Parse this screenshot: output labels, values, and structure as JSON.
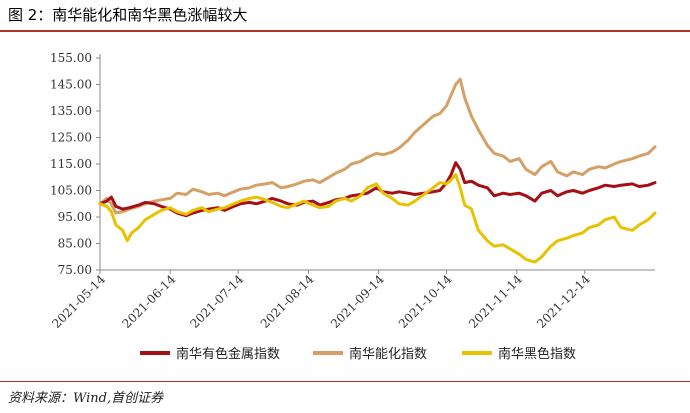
{
  "figure": {
    "title": "图 2：南华能化和南华黑色涨幅较大",
    "source": "资料来源：Wind,首创证券"
  },
  "chart_data": {
    "type": "line",
    "ylim": [
      75,
      155
    ],
    "y_ticks": [
      "75.00",
      "85.00",
      "95.00",
      "105.00",
      "115.00",
      "125.00",
      "135.00",
      "145.00",
      "155.00"
    ],
    "x_range": [
      "2021-05-14",
      "2022-01-14"
    ],
    "x_ticks": [
      "2021-05-14",
      "2021-06-14",
      "2021-07-14",
      "2021-08-14",
      "2021-09-14",
      "2021-10-14",
      "2021-11-14",
      "2021-12-14"
    ],
    "grid": false,
    "legend_position": "bottom",
    "series": [
      {
        "name": "南华有色金属指数",
        "color": "#a50f15",
        "points": [
          [
            "2021-05-14",
            100
          ],
          [
            "2021-05-17",
            101
          ],
          [
            "2021-05-19",
            102.5
          ],
          [
            "2021-05-21",
            99
          ],
          [
            "2021-05-24",
            98
          ],
          [
            "2021-05-27",
            98.5
          ],
          [
            "2021-05-31",
            99.5
          ],
          [
            "2021-06-03",
            100.5
          ],
          [
            "2021-06-07",
            100
          ],
          [
            "2021-06-10",
            99
          ],
          [
            "2021-06-14",
            98
          ],
          [
            "2021-06-17",
            96.5
          ],
          [
            "2021-06-21",
            95.5
          ],
          [
            "2021-06-24",
            96.5
          ],
          [
            "2021-06-28",
            97.5
          ],
          [
            "2021-07-01",
            98
          ],
          [
            "2021-07-05",
            98.5
          ],
          [
            "2021-07-08",
            97.5
          ],
          [
            "2021-07-12",
            99
          ],
          [
            "2021-07-15",
            100
          ],
          [
            "2021-07-19",
            100.5
          ],
          [
            "2021-07-22",
            100
          ],
          [
            "2021-07-26",
            101
          ],
          [
            "2021-07-29",
            102
          ],
          [
            "2021-08-02",
            101
          ],
          [
            "2021-08-05",
            100
          ],
          [
            "2021-08-09",
            99.5
          ],
          [
            "2021-08-12",
            100.5
          ],
          [
            "2021-08-16",
            101
          ],
          [
            "2021-08-19",
            99.5
          ],
          [
            "2021-08-23",
            100.5
          ],
          [
            "2021-08-26",
            101.5
          ],
          [
            "2021-08-30",
            102
          ],
          [
            "2021-09-02",
            103
          ],
          [
            "2021-09-06",
            103.5
          ],
          [
            "2021-09-09",
            104
          ],
          [
            "2021-09-13",
            106
          ],
          [
            "2021-09-16",
            104.5
          ],
          [
            "2021-09-20",
            104
          ],
          [
            "2021-09-23",
            104.5
          ],
          [
            "2021-09-27",
            104
          ],
          [
            "2021-09-30",
            103.5
          ],
          [
            "2021-10-08",
            104.5
          ],
          [
            "2021-10-11",
            105
          ],
          [
            "2021-10-14",
            108
          ],
          [
            "2021-10-16",
            111
          ],
          [
            "2021-10-18",
            115.5
          ],
          [
            "2021-10-20",
            113
          ],
          [
            "2021-10-22",
            108
          ],
          [
            "2021-10-25",
            108.5
          ],
          [
            "2021-10-28",
            107
          ],
          [
            "2021-11-01",
            106
          ],
          [
            "2021-11-04",
            103
          ],
          [
            "2021-11-08",
            104
          ],
          [
            "2021-11-11",
            103.5
          ],
          [
            "2021-11-15",
            104
          ],
          [
            "2021-11-18",
            103
          ],
          [
            "2021-11-22",
            101
          ],
          [
            "2021-11-25",
            104
          ],
          [
            "2021-11-29",
            105
          ],
          [
            "2021-12-02",
            103
          ],
          [
            "2021-12-06",
            104.5
          ],
          [
            "2021-12-09",
            105
          ],
          [
            "2021-12-13",
            104
          ],
          [
            "2021-12-16",
            105
          ],
          [
            "2021-12-20",
            106
          ],
          [
            "2021-12-23",
            107
          ],
          [
            "2021-12-27",
            106.5
          ],
          [
            "2021-12-30",
            107
          ],
          [
            "2022-01-04",
            107.5
          ],
          [
            "2022-01-07",
            106.5
          ],
          [
            "2022-01-11",
            107
          ],
          [
            "2022-01-14",
            108
          ]
        ]
      },
      {
        "name": "南华能化指数",
        "color": "#d4a066",
        "points": [
          [
            "2021-05-14",
            100
          ],
          [
            "2021-05-17",
            102
          ],
          [
            "2021-05-19",
            100
          ],
          [
            "2021-05-21",
            96.5
          ],
          [
            "2021-05-24",
            97
          ],
          [
            "2021-05-27",
            98
          ],
          [
            "2021-05-31",
            99
          ],
          [
            "2021-06-03",
            100
          ],
          [
            "2021-06-07",
            101
          ],
          [
            "2021-06-10",
            101.5
          ],
          [
            "2021-06-14",
            102
          ],
          [
            "2021-06-17",
            104
          ],
          [
            "2021-06-21",
            103.5
          ],
          [
            "2021-06-24",
            105.5
          ],
          [
            "2021-06-28",
            104.5
          ],
          [
            "2021-07-01",
            103.5
          ],
          [
            "2021-07-05",
            104
          ],
          [
            "2021-07-08",
            103
          ],
          [
            "2021-07-12",
            104.5
          ],
          [
            "2021-07-15",
            105.5
          ],
          [
            "2021-07-19",
            106
          ],
          [
            "2021-07-22",
            107
          ],
          [
            "2021-07-26",
            107.5
          ],
          [
            "2021-07-29",
            108
          ],
          [
            "2021-08-02",
            106
          ],
          [
            "2021-08-05",
            106.5
          ],
          [
            "2021-08-09",
            107.5
          ],
          [
            "2021-08-12",
            108.5
          ],
          [
            "2021-08-16",
            109
          ],
          [
            "2021-08-19",
            108
          ],
          [
            "2021-08-23",
            110
          ],
          [
            "2021-08-26",
            111.5
          ],
          [
            "2021-08-30",
            113
          ],
          [
            "2021-09-02",
            115
          ],
          [
            "2021-09-06",
            116
          ],
          [
            "2021-09-09",
            117.5
          ],
          [
            "2021-09-13",
            119
          ],
          [
            "2021-09-16",
            118.5
          ],
          [
            "2021-09-20",
            119.5
          ],
          [
            "2021-09-23",
            121
          ],
          [
            "2021-09-27",
            124
          ],
          [
            "2021-09-30",
            127
          ],
          [
            "2021-10-08",
            133
          ],
          [
            "2021-10-11",
            134
          ],
          [
            "2021-10-14",
            137
          ],
          [
            "2021-10-16",
            141
          ],
          [
            "2021-10-18",
            145
          ],
          [
            "2021-10-20",
            147
          ],
          [
            "2021-10-22",
            140
          ],
          [
            "2021-10-25",
            133
          ],
          [
            "2021-10-28",
            128
          ],
          [
            "2021-11-01",
            122
          ],
          [
            "2021-11-04",
            119
          ],
          [
            "2021-11-08",
            118
          ],
          [
            "2021-11-11",
            116
          ],
          [
            "2021-11-15",
            117
          ],
          [
            "2021-11-18",
            113
          ],
          [
            "2021-11-22",
            111
          ],
          [
            "2021-11-25",
            114
          ],
          [
            "2021-11-29",
            116
          ],
          [
            "2021-12-02",
            112
          ],
          [
            "2021-12-06",
            110.5
          ],
          [
            "2021-12-09",
            112
          ],
          [
            "2021-12-13",
            111
          ],
          [
            "2021-12-16",
            113
          ],
          [
            "2021-12-20",
            114
          ],
          [
            "2021-12-23",
            113.5
          ],
          [
            "2021-12-27",
            115
          ],
          [
            "2021-12-30",
            116
          ],
          [
            "2022-01-04",
            117
          ],
          [
            "2022-01-07",
            118
          ],
          [
            "2022-01-11",
            119
          ],
          [
            "2022-01-14",
            121.5
          ]
        ]
      },
      {
        "name": "南华黑色指数",
        "color": "#e8c200",
        "points": [
          [
            "2021-05-14",
            100
          ],
          [
            "2021-05-17",
            99
          ],
          [
            "2021-05-19",
            97
          ],
          [
            "2021-05-21",
            92
          ],
          [
            "2021-05-24",
            90
          ],
          [
            "2021-05-26",
            86
          ],
          [
            "2021-05-28",
            89
          ],
          [
            "2021-05-31",
            91
          ],
          [
            "2021-06-03",
            94
          ],
          [
            "2021-06-07",
            96
          ],
          [
            "2021-06-10",
            97.5
          ],
          [
            "2021-06-14",
            98.5
          ],
          [
            "2021-06-17",
            97
          ],
          [
            "2021-06-21",
            96
          ],
          [
            "2021-06-24",
            97.5
          ],
          [
            "2021-06-28",
            98.5
          ],
          [
            "2021-07-01",
            97
          ],
          [
            "2021-07-05",
            98
          ],
          [
            "2021-07-08",
            98.5
          ],
          [
            "2021-07-12",
            100
          ],
          [
            "2021-07-15",
            101
          ],
          [
            "2021-07-19",
            102
          ],
          [
            "2021-07-22",
            102.5
          ],
          [
            "2021-07-26",
            101.5
          ],
          [
            "2021-07-29",
            100.5
          ],
          [
            "2021-08-02",
            99
          ],
          [
            "2021-08-05",
            98.5
          ],
          [
            "2021-08-09",
            100
          ],
          [
            "2021-08-12",
            101
          ],
          [
            "2021-08-16",
            99.5
          ],
          [
            "2021-08-19",
            98.5
          ],
          [
            "2021-08-23",
            99
          ],
          [
            "2021-08-26",
            101
          ],
          [
            "2021-08-30",
            102
          ],
          [
            "2021-09-02",
            101
          ],
          [
            "2021-09-06",
            103
          ],
          [
            "2021-09-09",
            106
          ],
          [
            "2021-09-13",
            107.5
          ],
          [
            "2021-09-16",
            104
          ],
          [
            "2021-09-20",
            102
          ],
          [
            "2021-09-23",
            100
          ],
          [
            "2021-09-27",
            99.5
          ],
          [
            "2021-09-30",
            101
          ],
          [
            "2021-10-08",
            106
          ],
          [
            "2021-10-11",
            108
          ],
          [
            "2021-10-14",
            107.5
          ],
          [
            "2021-10-16",
            109
          ],
          [
            "2021-10-18",
            111
          ],
          [
            "2021-10-20",
            106
          ],
          [
            "2021-10-22",
            99.5
          ],
          [
            "2021-10-25",
            98
          ],
          [
            "2021-10-28",
            90
          ],
          [
            "2021-11-01",
            86
          ],
          [
            "2021-11-04",
            84
          ],
          [
            "2021-11-08",
            84.5
          ],
          [
            "2021-11-11",
            83
          ],
          [
            "2021-11-15",
            81
          ],
          [
            "2021-11-18",
            79
          ],
          [
            "2021-11-22",
            78
          ],
          [
            "2021-11-25",
            80
          ],
          [
            "2021-11-29",
            84
          ],
          [
            "2021-12-02",
            86
          ],
          [
            "2021-12-06",
            87
          ],
          [
            "2021-12-09",
            88
          ],
          [
            "2021-12-13",
            89
          ],
          [
            "2021-12-16",
            91
          ],
          [
            "2021-12-20",
            92
          ],
          [
            "2021-12-23",
            94
          ],
          [
            "2021-12-27",
            95
          ],
          [
            "2021-12-30",
            91
          ],
          [
            "2022-01-04",
            90
          ],
          [
            "2022-01-07",
            92
          ],
          [
            "2022-01-11",
            94
          ],
          [
            "2022-01-14",
            96.5
          ]
        ]
      }
    ]
  }
}
